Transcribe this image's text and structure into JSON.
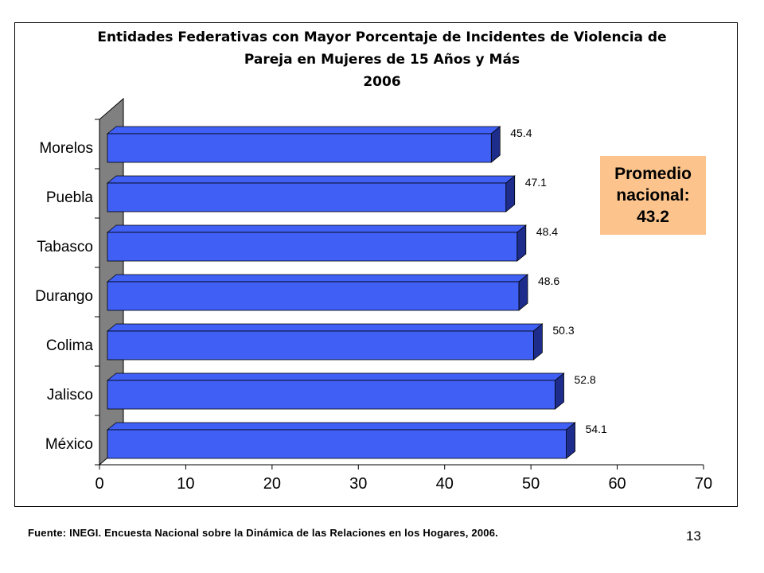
{
  "chart_data": {
    "type": "bar",
    "orientation": "horizontal",
    "title_lines": [
      "Entidades Federativas con Mayor Porcentaje de Incidentes de Violencia de",
      "Pareja en Mujeres de 15 Años y Más",
      "2006"
    ],
    "categories": [
      "Morelos",
      "Puebla",
      "Tabasco",
      "Durango",
      "Colima",
      "Jalisco",
      "México"
    ],
    "values": [
      45.4,
      47.1,
      48.4,
      48.6,
      50.3,
      52.8,
      54.1
    ],
    "data_labels": [
      "45.4",
      "47.1",
      "48.4",
      "48.6",
      "50.3",
      "52.8",
      "54.1"
    ],
    "xlim": [
      0,
      70
    ],
    "x_ticks": [
      "0",
      "10",
      "20",
      "30",
      "40",
      "50",
      "60",
      "70"
    ],
    "bar_color": "#3f5ff5",
    "bar_side_color": "#1e2d8c",
    "wall_color": "#808080",
    "grid": false,
    "legend": "none",
    "three_d": true
  },
  "annotation": {
    "lines": [
      "Promedio",
      "nacional:",
      "43.2"
    ],
    "background": "#fcc48c"
  },
  "footer": {
    "source": "Fuente: INEGI. Encuesta Nacional sobre la Dinámica de las Relaciones en los Hogares, 2006.",
    "page_number": "13"
  }
}
